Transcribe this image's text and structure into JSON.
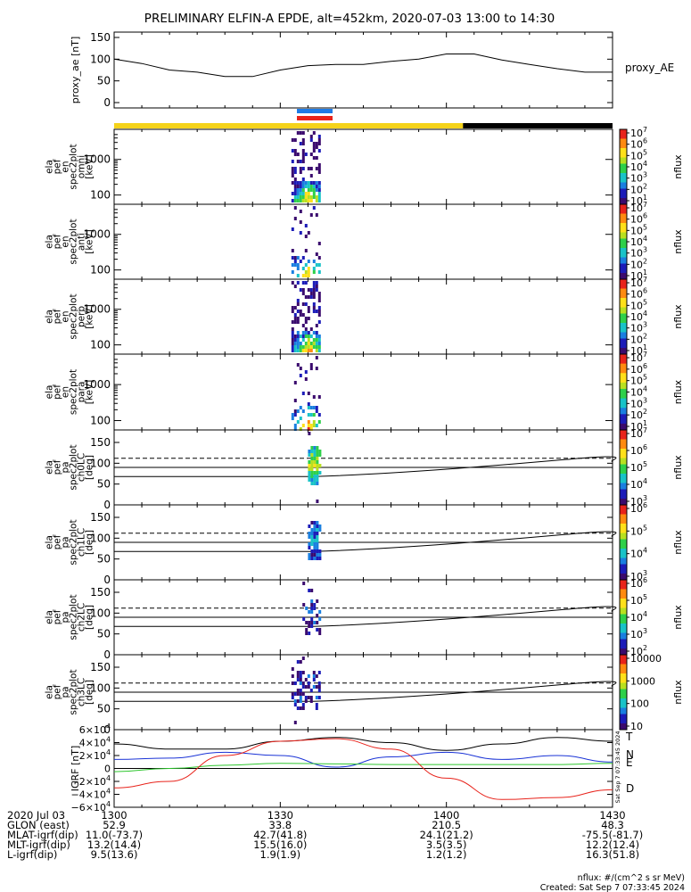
{
  "title": "PRELIMINARY ELFIN-A EPDE, alt=452km, 2020-07-03 13:00 to 14:30",
  "colors": {
    "sunlit_bar": "#f5d31a",
    "shadow_bar": "#000000",
    "marker_blue": "#1e7be6",
    "marker_red": "#e8231b",
    "field_T": "#000000",
    "field_N": "#1a33d6",
    "field_E": "#2ec62e",
    "field_D": "#e8231b"
  },
  "colorbars": [
    {
      "ticks": [
        "10^1",
        "10^2",
        "10^3",
        "10^4",
        "10^5",
        "10^6",
        "10^7"
      ],
      "label": "nflux"
    },
    {
      "ticks": [
        "10^1",
        "10^2",
        "10^3",
        "10^4",
        "10^5",
        "10^6",
        "10^7"
      ],
      "label": "nflux"
    },
    {
      "ticks": [
        "10^1",
        "10^2",
        "10^3",
        "10^4",
        "10^5",
        "10^6",
        "10^7"
      ],
      "label": "nflux"
    },
    {
      "ticks": [
        "10^1",
        "10^2",
        "10^3",
        "10^4",
        "10^5",
        "10^6",
        "10^7"
      ],
      "label": "nflux"
    },
    {
      "ticks": [
        "10^3",
        "10^4",
        "10^5",
        "10^6",
        "10^7"
      ],
      "label": "nflux"
    },
    {
      "ticks": [
        "10^3",
        "10^4",
        "10^5",
        "10^6"
      ],
      "label": "nflux"
    },
    {
      "ticks": [
        "10^2",
        "10^3",
        "10^4",
        "10^5",
        "10^6"
      ],
      "label": "nflux"
    },
    {
      "ticks": [
        "10",
        "100",
        "1000",
        "10000"
      ],
      "label": "nflux"
    }
  ],
  "footer": {
    "nflux_units": "nflux: #/(cm^2 s sr MeV)",
    "created": "Created: Sat Sep  7 07:33:45 2024",
    "side_stamp": "Sat Sep  7 07:33:45 2024"
  },
  "chart_data": [
    {
      "type": "line",
      "ylabel": "proxy_ae [nT]",
      "legend": "proxy_AE",
      "ylim": [
        0,
        150
      ],
      "yticks": [
        "0",
        "50",
        "100",
        "150"
      ],
      "x": [
        "13:00",
        "13:05",
        "13:10",
        "13:15",
        "13:20",
        "13:25",
        "13:30",
        "13:35",
        "13:40",
        "13:45",
        "13:50",
        "13:55",
        "14:00",
        "14:05",
        "14:10",
        "14:15",
        "14:20",
        "14:25",
        "14:30"
      ],
      "values": [
        100,
        90,
        75,
        70,
        60,
        60,
        75,
        85,
        88,
        88,
        95,
        100,
        112,
        112,
        98,
        88,
        78,
        70,
        70
      ]
    },
    {
      "type": "heatmap",
      "ylabel": "ela pef en spec2plot omni [keV]",
      "yscale": "log",
      "yticks": [
        "100",
        "1000"
      ],
      "x_range": [
        "13:32",
        "13:37"
      ]
    },
    {
      "type": "heatmap",
      "ylabel": "ela pef en spec2plot anti [keV]",
      "yscale": "log",
      "yticks": [
        "100",
        "1000"
      ],
      "x_range": [
        "13:32",
        "13:37"
      ]
    },
    {
      "type": "heatmap",
      "ylabel": "ela pef en spec2plot perp [keV]",
      "yscale": "log",
      "yticks": [
        "100",
        "1000"
      ],
      "x_range": [
        "13:32",
        "13:37"
      ]
    },
    {
      "type": "heatmap",
      "ylabel": "ela pef en spec2plot para [keV]",
      "yscale": "log",
      "yticks": [
        "100",
        "1000"
      ],
      "x_range": [
        "13:32",
        "13:37"
      ]
    },
    {
      "type": "heatmap",
      "ylabel": "ela pef pa spec2plot ch0LC [deg]",
      "ylim": [
        0,
        180
      ],
      "yticks": [
        "0",
        "50",
        "100",
        "150"
      ],
      "x_range": [
        "13:35",
        "13:37"
      ]
    },
    {
      "type": "heatmap",
      "ylabel": "ela pef pa spec2plot ch1LC [deg]",
      "ylim": [
        0,
        180
      ],
      "yticks": [
        "0",
        "50",
        "100",
        "150"
      ],
      "x_range": [
        "13:35",
        "13:37"
      ]
    },
    {
      "type": "heatmap",
      "ylabel": "ela pef pa spec2plot ch2LC [deg]",
      "ylim": [
        0,
        180
      ],
      "yticks": [
        "0",
        "50",
        "100",
        "150"
      ],
      "x_range": [
        "13:34",
        "13:37"
      ]
    },
    {
      "type": "heatmap",
      "ylabel": "ela pef pa spec2plot ch3LC [deg]",
      "ylim": [
        0,
        180
      ],
      "yticks": [
        "0",
        "50",
        "100",
        "150"
      ],
      "x_range": [
        "13:32",
        "13:37"
      ]
    },
    {
      "type": "line",
      "ylabel": "IGRF [nT]",
      "ylim": [
        -60000,
        60000
      ],
      "yticks": [
        "6×10^4",
        "4×10^4",
        "2×10^4",
        "0",
        "−2×10^4",
        "−4×10^4",
        "−6×10^4"
      ],
      "x": [
        "13:00",
        "13:10",
        "13:20",
        "13:30",
        "13:40",
        "13:50",
        "14:00",
        "14:10",
        "14:20",
        "14:30"
      ],
      "series": [
        {
          "name": "T",
          "values": [
            38000,
            30000,
            30000,
            42000,
            48000,
            40000,
            28000,
            38000,
            48000,
            42000
          ]
        },
        {
          "name": "N",
          "values": [
            14000,
            16000,
            25000,
            20000,
            2000,
            18000,
            25000,
            14000,
            20000,
            10000
          ]
        },
        {
          "name": "E",
          "values": [
            -5000,
            0,
            5000,
            8000,
            7000,
            6000,
            6000,
            6000,
            6000,
            8000
          ]
        },
        {
          "name": "D",
          "values": [
            -30000,
            -20000,
            20000,
            42000,
            46000,
            30000,
            -15000,
            -48000,
            -45000,
            -33000
          ]
        }
      ]
    }
  ],
  "xaxis": {
    "ticks": [
      "1300",
      "1330",
      "1400",
      "1430"
    ],
    "rows": [
      {
        "label": "2020 Jul 03",
        "values": [
          "1300",
          "1330",
          "1400",
          "1430"
        ]
      },
      {
        "label": "GLON (east)",
        "values": [
          "52.9",
          "33.8",
          "210.5",
          "48.3"
        ]
      },
      {
        "label": "MLAT-igrf(dip)",
        "values": [
          "11.0(-73.7)",
          "42.7(41.8)",
          "24.1(21.2)",
          "-75.5(-81.7)"
        ]
      },
      {
        "label": "MLT-igrf(dip)",
        "values": [
          "13.2(14.4)",
          "15.5(16.0)",
          "3.5(3.5)",
          "12.2(12.4)"
        ]
      },
      {
        "label": "L-igrf(dip)",
        "values": [
          "9.5(13.6)",
          "1.9(1.9)",
          "1.2(1.2)",
          "16.3(51.8)"
        ]
      }
    ]
  }
}
